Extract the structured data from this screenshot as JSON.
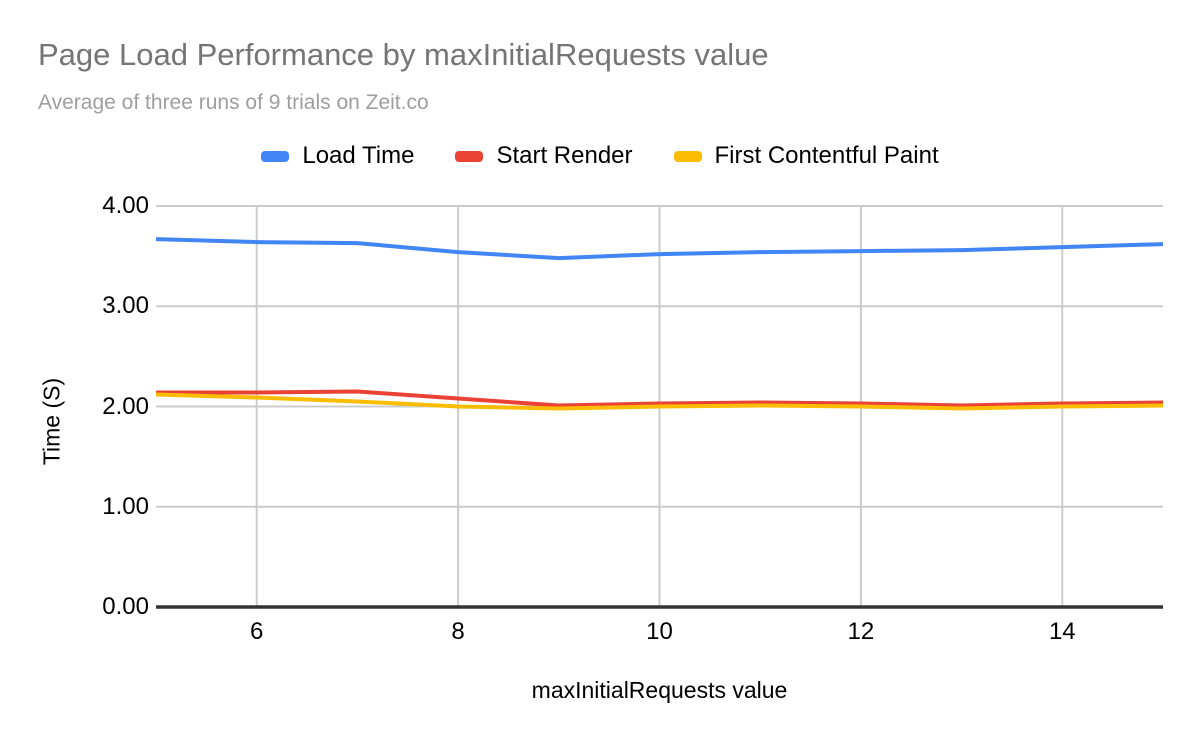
{
  "colors": {
    "background": "#ffffff",
    "title_text": "#757575",
    "subtitle_text": "#9e9e9e",
    "label_text": "#000000",
    "gridline": "#cccccc",
    "axis_line": "#333333",
    "series_blue": "#4285f4",
    "series_red": "#ea4335",
    "series_yellow": "#fbbc04"
  },
  "chart_data": {
    "type": "line",
    "title": "Page Load Performance by maxInitialRequests value",
    "subtitle": "Average of three runs of 9 trials on Zeit.co",
    "xlabel": "maxInitialRequests value",
    "ylabel": "Time (S)",
    "xlim": [
      5,
      15
    ],
    "ylim": [
      0,
      4
    ],
    "grid": true,
    "legend_position": "top",
    "x": [
      5,
      6,
      7,
      8,
      9,
      10,
      11,
      12,
      13,
      14,
      15
    ],
    "xticks": [
      {
        "value": 6,
        "label": "6"
      },
      {
        "value": 8,
        "label": "8"
      },
      {
        "value": 10,
        "label": "10"
      },
      {
        "value": 12,
        "label": "12"
      },
      {
        "value": 14,
        "label": "14"
      }
    ],
    "yticks": [
      {
        "value": 4,
        "label": "4.00"
      },
      {
        "value": 3,
        "label": "3.00"
      },
      {
        "value": 2,
        "label": "2.00"
      },
      {
        "value": 1,
        "label": "1.00"
      },
      {
        "value": 0,
        "label": "0.00"
      }
    ],
    "series": [
      {
        "name": "Load Time",
        "color": "#4285f4",
        "values": [
          3.67,
          3.64,
          3.63,
          3.54,
          3.48,
          3.52,
          3.54,
          3.55,
          3.56,
          3.59,
          3.62
        ]
      },
      {
        "name": "Start Render",
        "color": "#ea4335",
        "values": [
          2.14,
          2.14,
          2.15,
          2.08,
          2.01,
          2.03,
          2.04,
          2.03,
          2.01,
          2.03,
          2.04
        ]
      },
      {
        "name": "First Contentful Paint",
        "color": "#fbbc04",
        "values": [
          2.12,
          2.09,
          2.05,
          2.0,
          1.98,
          2.0,
          2.01,
          2.0,
          1.98,
          2.0,
          2.01
        ]
      }
    ]
  }
}
